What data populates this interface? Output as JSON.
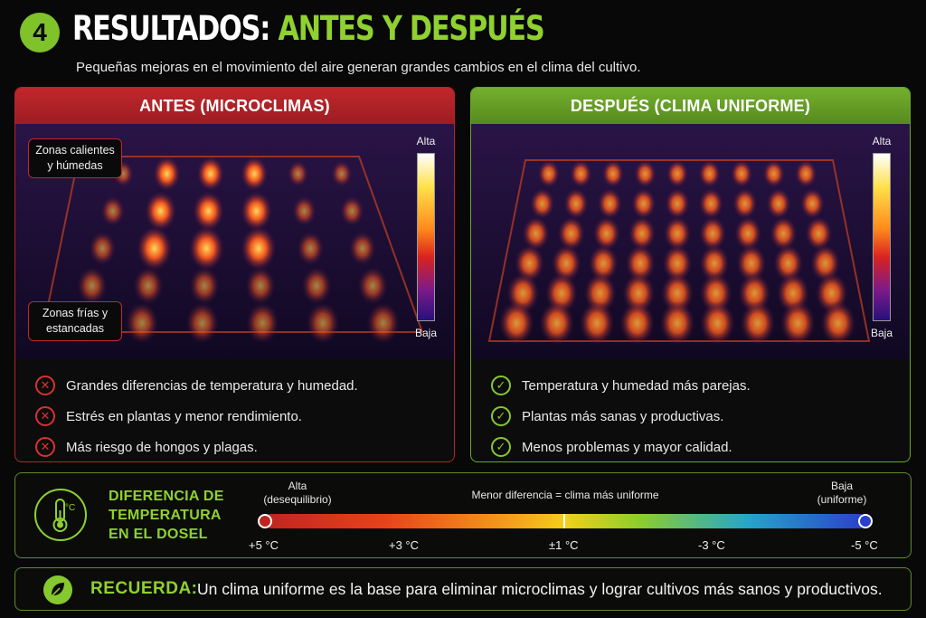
{
  "header": {
    "step": "4",
    "title_white": "RESULTADOS:",
    "title_green": "ANTES Y DESPUÉS",
    "subtitle": "Pequeñas mejoras en el movimiento del aire generan grandes cambios en el clima del cultivo."
  },
  "before": {
    "title": "ANTES (MICROCLIMAS)",
    "scale_high": "Alta",
    "scale_low": "Baja",
    "callout_hot": "Zonas calientes y húmedas",
    "callout_cold": "Zonas frías y estancadas",
    "items": [
      "Grandes diferencias de temperatura y humedad.",
      "Estrés en plantas y menor rendimiento.",
      "Más riesgo de hongos y plagas."
    ]
  },
  "after": {
    "title": "DESPUÉS (CLIMA UNIFORME)",
    "scale_high": "Alta",
    "scale_low": "Baja",
    "items": [
      "Temperatura y humedad más parejas.",
      "Plantas más sanas y productivas.",
      "Menos problemas y mayor calidad."
    ]
  },
  "difference": {
    "title_line1": "DIFERENCIA DE",
    "title_line2": "TEMPERATURA",
    "title_line3": "EN EL DOSEL",
    "thermo_unit": "°C",
    "left_label1": "Alta",
    "left_label2": "(desequilibrio)",
    "center_label": "Menor diferencia = clima más uniforme",
    "right_label1": "Baja",
    "right_label2": "(uniforme)",
    "ticks": [
      "+5 °C",
      "+3 °C",
      "±1 °C",
      "-3 °C",
      "-5 °C"
    ]
  },
  "footer": {
    "label": "RECUERDA:",
    "text": "Un clima uniforme es la base para eliminar microclimas y lograr cultivos más sanos y productivos."
  }
}
